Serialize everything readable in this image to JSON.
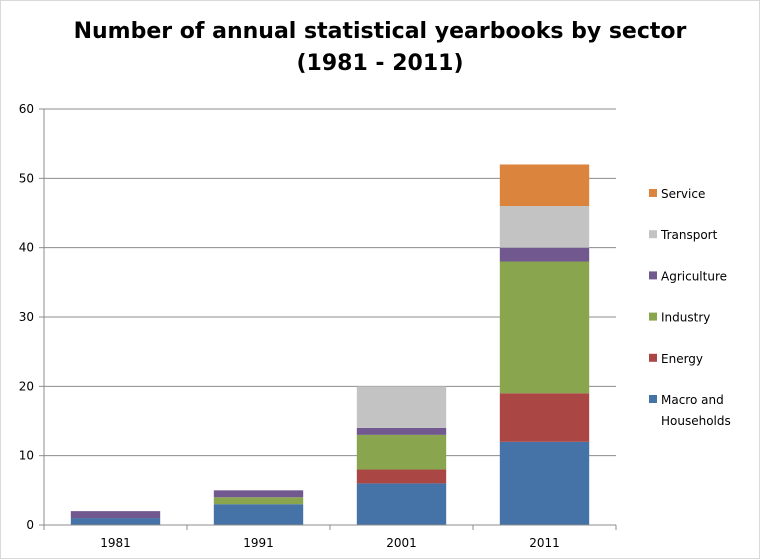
{
  "chart_data": {
    "type": "bar",
    "stacked": true,
    "title_lines": [
      "Number of annual statistical yearbooks by sector",
      "(1981 - 2011)"
    ],
    "categories": [
      "1981",
      "1991",
      "2001",
      "2011"
    ],
    "series": [
      {
        "name": "Macro and Households",
        "name_lines": [
          "Macro and",
          "Households"
        ],
        "color": "#4572a7",
        "values": [
          1,
          3,
          6,
          12
        ]
      },
      {
        "name": "Energy",
        "name_lines": [
          "Energy"
        ],
        "color": "#aa4643",
        "values": [
          0,
          0,
          2,
          7
        ]
      },
      {
        "name": "Industry",
        "name_lines": [
          "Industry"
        ],
        "color": "#89a54e",
        "values": [
          0,
          1,
          5,
          19
        ]
      },
      {
        "name": "Agriculture",
        "name_lines": [
          "Agriculture"
        ],
        "color": "#71588f",
        "values": [
          1,
          1,
          1,
          2
        ]
      },
      {
        "name": "Transport",
        "name_lines": [
          "Transport"
        ],
        "color": "#c3c3c3",
        "values": [
          0,
          0,
          6,
          6
        ]
      },
      {
        "name": "Service",
        "name_lines": [
          "Service"
        ],
        "color": "#db843d",
        "values": [
          0,
          0,
          0,
          6
        ]
      }
    ],
    "ylim": [
      0,
      60
    ],
    "yticks": [
      "0",
      "10",
      "20",
      "30",
      "40",
      "50",
      "60"
    ],
    "grid": true,
    "legend": "right",
    "xlabel": "",
    "ylabel": ""
  }
}
